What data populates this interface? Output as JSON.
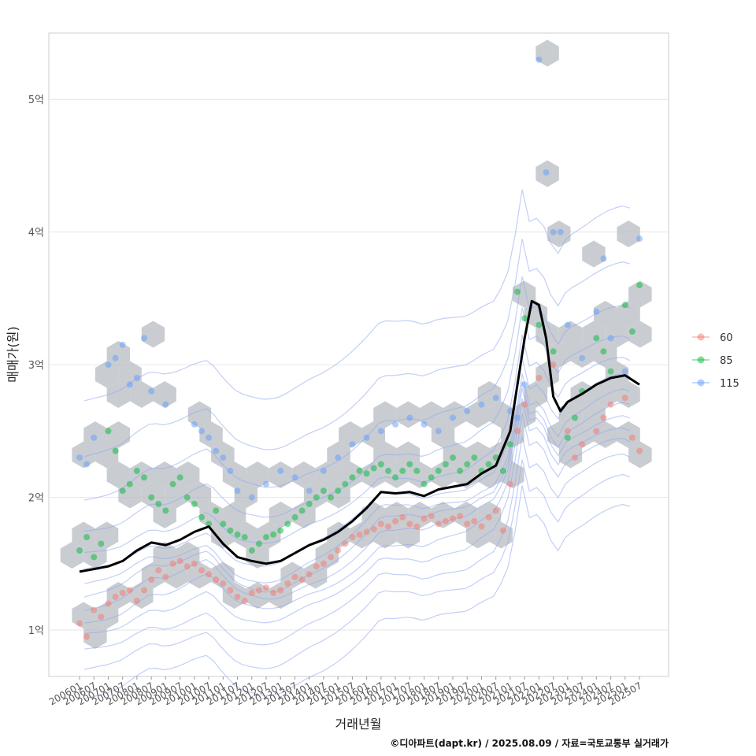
{
  "chart_data": {
    "type": "scatter",
    "xlabel": "거래년월",
    "ylabel": "매매가(원)",
    "caption": "©디아파트(dapt.kr) / 2025.08.09 / 자료=국토교통부 실거래가",
    "y_unit": "억",
    "ylim": [
      0.65,
      5.5
    ],
    "y_ticks": [
      1,
      2,
      3,
      4,
      5
    ],
    "y_tick_labels": [
      "1억",
      "2억",
      "3억",
      "4억",
      "5억"
    ],
    "x_range": [
      "200601",
      "202507"
    ],
    "x_tick_labels": [
      "200601",
      "200607",
      "200701",
      "200707",
      "200801",
      "200807",
      "200901",
      "200907",
      "201001",
      "201007",
      "201101",
      "201107",
      "201201",
      "201207",
      "201301",
      "201307",
      "201401",
      "201407",
      "201501",
      "201507",
      "201601",
      "201607",
      "201701",
      "201707",
      "201801",
      "201807",
      "201901",
      "201907",
      "202001",
      "202007",
      "202101",
      "202107",
      "202201",
      "202207",
      "202301",
      "202307",
      "202401",
      "202407",
      "202501",
      "202507"
    ],
    "grid": true,
    "legend_position": "right",
    "series": [
      {
        "name": "60",
        "color": "#F8766D"
      },
      {
        "name": "85",
        "color": "#00BA38"
      },
      {
        "name": "115",
        "color": "#619CFF"
      }
    ],
    "trend_line": {
      "color": "#000000",
      "x": [
        "200601",
        "200607",
        "200701",
        "200707",
        "200801",
        "200807",
        "200901",
        "200907",
        "201001",
        "201007",
        "201101",
        "201107",
        "201201",
        "201207",
        "201301",
        "201307",
        "201401",
        "201407",
        "201501",
        "201507",
        "201601",
        "201607",
        "201701",
        "201707",
        "201801",
        "201807",
        "201901",
        "201907",
        "202001",
        "202007",
        "202101",
        "202107",
        "202110",
        "202201",
        "202204",
        "202207",
        "202210",
        "202301",
        "202307",
        "202401",
        "202407",
        "202501",
        "202507"
      ],
      "y": [
        1.44,
        1.46,
        1.48,
        1.52,
        1.6,
        1.66,
        1.64,
        1.68,
        1.74,
        1.78,
        1.65,
        1.55,
        1.52,
        1.5,
        1.52,
        1.58,
        1.64,
        1.68,
        1.74,
        1.82,
        1.92,
        2.04,
        2.03,
        2.04,
        2.01,
        2.06,
        2.08,
        2.1,
        2.18,
        2.24,
        2.5,
        3.2,
        3.48,
        3.45,
        3.2,
        2.76,
        2.65,
        2.72,
        2.78,
        2.85,
        2.9,
        2.92,
        2.85
      ]
    },
    "points": {
      "60": {
        "x": [
          "200601",
          "200604",
          "200607",
          "200610",
          "200701",
          "200704",
          "200707",
          "200710",
          "200801",
          "200804",
          "200807",
          "200810",
          "200901",
          "200904",
          "200907",
          "200910",
          "201001",
          "201004",
          "201007",
          "201010",
          "201101",
          "201104",
          "201107",
          "201110",
          "201201",
          "201204",
          "201207",
          "201210",
          "201301",
          "201304",
          "201307",
          "201310",
          "201401",
          "201404",
          "201407",
          "201410",
          "201501",
          "201504",
          "201507",
          "201510",
          "201601",
          "201604",
          "201607",
          "201610",
          "201701",
          "201704",
          "201707",
          "201710",
          "201801",
          "201804",
          "201807",
          "201810",
          "201901",
          "201904",
          "201907",
          "201910",
          "202001",
          "202004",
          "202007",
          "202010",
          "202101",
          "202104",
          "202107",
          "202201",
          "202207",
          "202301",
          "202304",
          "202307",
          "202401",
          "202404",
          "202407",
          "202501",
          "202504",
          "202507"
        ],
        "y": [
          1.05,
          0.95,
          1.15,
          1.1,
          1.2,
          1.25,
          1.28,
          1.3,
          1.22,
          1.3,
          1.38,
          1.45,
          1.4,
          1.5,
          1.52,
          1.48,
          1.5,
          1.45,
          1.42,
          1.38,
          1.35,
          1.3,
          1.25,
          1.22,
          1.28,
          1.3,
          1.32,
          1.28,
          1.3,
          1.35,
          1.4,
          1.38,
          1.42,
          1.48,
          1.5,
          1.55,
          1.6,
          1.65,
          1.7,
          1.72,
          1.74,
          1.76,
          1.8,
          1.78,
          1.82,
          1.85,
          1.8,
          1.78,
          1.84,
          1.86,
          1.8,
          1.82,
          1.84,
          1.86,
          1.8,
          1.82,
          1.78,
          1.85,
          1.9,
          1.75,
          2.1,
          2.5,
          2.7,
          2.9,
          3.0,
          2.5,
          2.3,
          2.4,
          2.5,
          2.6,
          2.7,
          2.75,
          2.45,
          2.35
        ]
      },
      "85": {
        "x": [
          "200601",
          "200604",
          "200607",
          "200610",
          "200701",
          "200704",
          "200707",
          "200710",
          "200801",
          "200804",
          "200807",
          "200810",
          "200901",
          "200904",
          "200907",
          "200910",
          "201001",
          "201004",
          "201007",
          "201010",
          "201101",
          "201104",
          "201107",
          "201110",
          "201201",
          "201204",
          "201207",
          "201210",
          "201301",
          "201304",
          "201307",
          "201310",
          "201401",
          "201404",
          "201407",
          "201410",
          "201501",
          "201504",
          "201507",
          "201510",
          "201601",
          "201604",
          "201607",
          "201610",
          "201701",
          "201704",
          "201707",
          "201710",
          "201801",
          "201804",
          "201807",
          "201810",
          "201901",
          "201904",
          "201907",
          "201910",
          "202001",
          "202004",
          "202007",
          "202010",
          "202101",
          "202104",
          "202107",
          "202201",
          "202207",
          "202301",
          "202304",
          "202307",
          "202401",
          "202404",
          "202407",
          "202501",
          "202504",
          "202507"
        ],
        "y": [
          1.6,
          1.7,
          1.55,
          1.65,
          2.5,
          2.35,
          2.05,
          2.1,
          2.2,
          2.15,
          2.0,
          1.95,
          1.9,
          2.1,
          2.15,
          2.0,
          1.95,
          1.85,
          1.8,
          1.9,
          1.8,
          1.75,
          1.72,
          1.7,
          1.6,
          1.65,
          1.7,
          1.72,
          1.75,
          1.8,
          1.85,
          1.9,
          1.95,
          2.0,
          2.05,
          2.0,
          2.05,
          2.1,
          2.15,
          2.2,
          2.18,
          2.22,
          2.25,
          2.2,
          2.15,
          2.2,
          2.25,
          2.2,
          2.1,
          2.15,
          2.2,
          2.25,
          2.3,
          2.2,
          2.25,
          2.3,
          2.2,
          2.25,
          2.3,
          2.2,
          2.4,
          3.55,
          3.35,
          3.3,
          3.1,
          2.45,
          2.6,
          2.8,
          3.2,
          3.1,
          2.95,
          3.45,
          3.25,
          3.6
        ]
      },
      "115": {
        "x": [
          "200601",
          "200604",
          "200607",
          "200701",
          "200704",
          "200707",
          "200710",
          "200801",
          "200804",
          "200807",
          "200901",
          "201001",
          "201004",
          "201007",
          "201010",
          "201101",
          "201104",
          "201107",
          "201201",
          "201207",
          "201301",
          "201307",
          "201401",
          "201407",
          "201501",
          "201507",
          "201601",
          "201607",
          "201701",
          "201707",
          "201801",
          "201807",
          "201901",
          "201907",
          "202001",
          "202007",
          "202101",
          "202104",
          "202107",
          "202201",
          "202204",
          "202207",
          "202210",
          "202301",
          "202307",
          "202401",
          "202404",
          "202407",
          "202501",
          "202507"
        ],
        "y": [
          2.3,
          2.25,
          2.45,
          3.0,
          3.05,
          3.15,
          2.85,
          2.9,
          3.2,
          2.8,
          2.7,
          2.55,
          2.5,
          2.45,
          2.35,
          2.3,
          2.2,
          2.05,
          2.0,
          2.1,
          2.2,
          2.15,
          2.05,
          2.2,
          2.3,
          2.4,
          2.45,
          2.5,
          2.55,
          2.6,
          2.55,
          2.5,
          2.6,
          2.65,
          2.7,
          2.75,
          2.65,
          2.6,
          2.85,
          5.3,
          4.45,
          4.0,
          4.0,
          3.3,
          3.05,
          3.4,
          3.8,
          3.2,
          2.95,
          3.95
        ]
      }
    }
  }
}
